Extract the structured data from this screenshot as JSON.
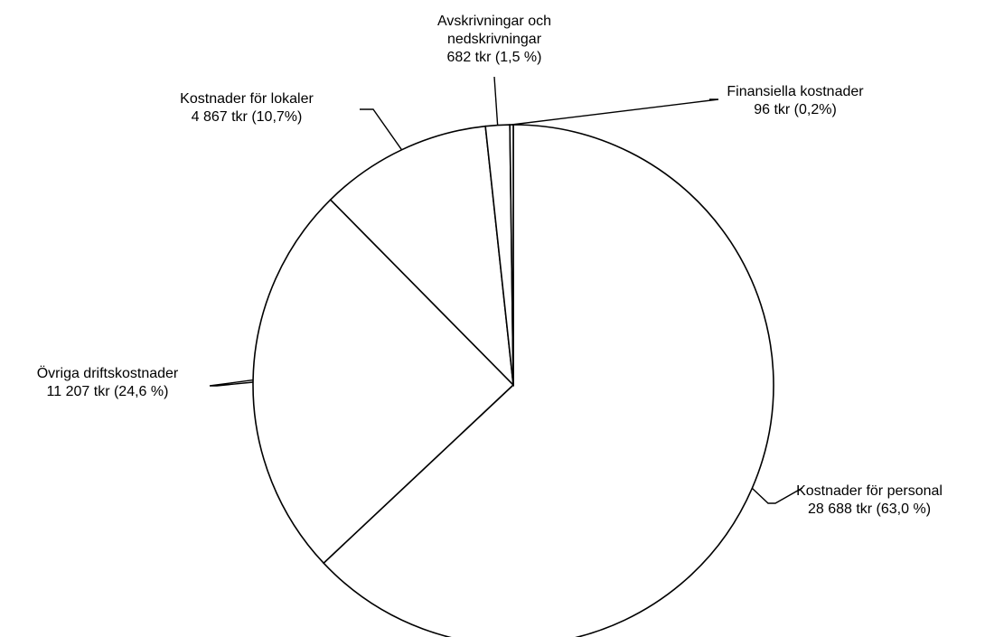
{
  "chart_data": {
    "type": "pie",
    "title": "",
    "unit": "tkr",
    "slices": [
      {
        "name": "Kostnader för personal",
        "value": 28688,
        "percent": 63.0,
        "label_lines": [
          "Kostnader för personal",
          "28 688 tkr (63,0 %)"
        ]
      },
      {
        "name": "Övriga driftskostnader",
        "value": 11207,
        "percent": 24.6,
        "label_lines": [
          "Övriga driftskostnader",
          "11 207 tkr (24,6 %)"
        ]
      },
      {
        "name": "Kostnader för lokaler",
        "value": 4867,
        "percent": 10.7,
        "label_lines": [
          "Kostnader för lokaler",
          "4 867 tkr (10,7%)"
        ]
      },
      {
        "name": "Avskrivningar och nedskrivningar",
        "value": 682,
        "percent": 1.5,
        "label_lines": [
          "Avskrivningar och",
          "nedskrivningar",
          "682 tkr (1,5 %)"
        ]
      },
      {
        "name": "Finansiella kostnader",
        "value": 96,
        "percent": 0.2,
        "label_lines": [
          "Finansiella kostnader",
          "96 tkr (0,2%)"
        ]
      }
    ],
    "start_angle_deg": 0,
    "direction": "clockwise",
    "fill_color": "#ffffff",
    "stroke_color": "#000000"
  }
}
